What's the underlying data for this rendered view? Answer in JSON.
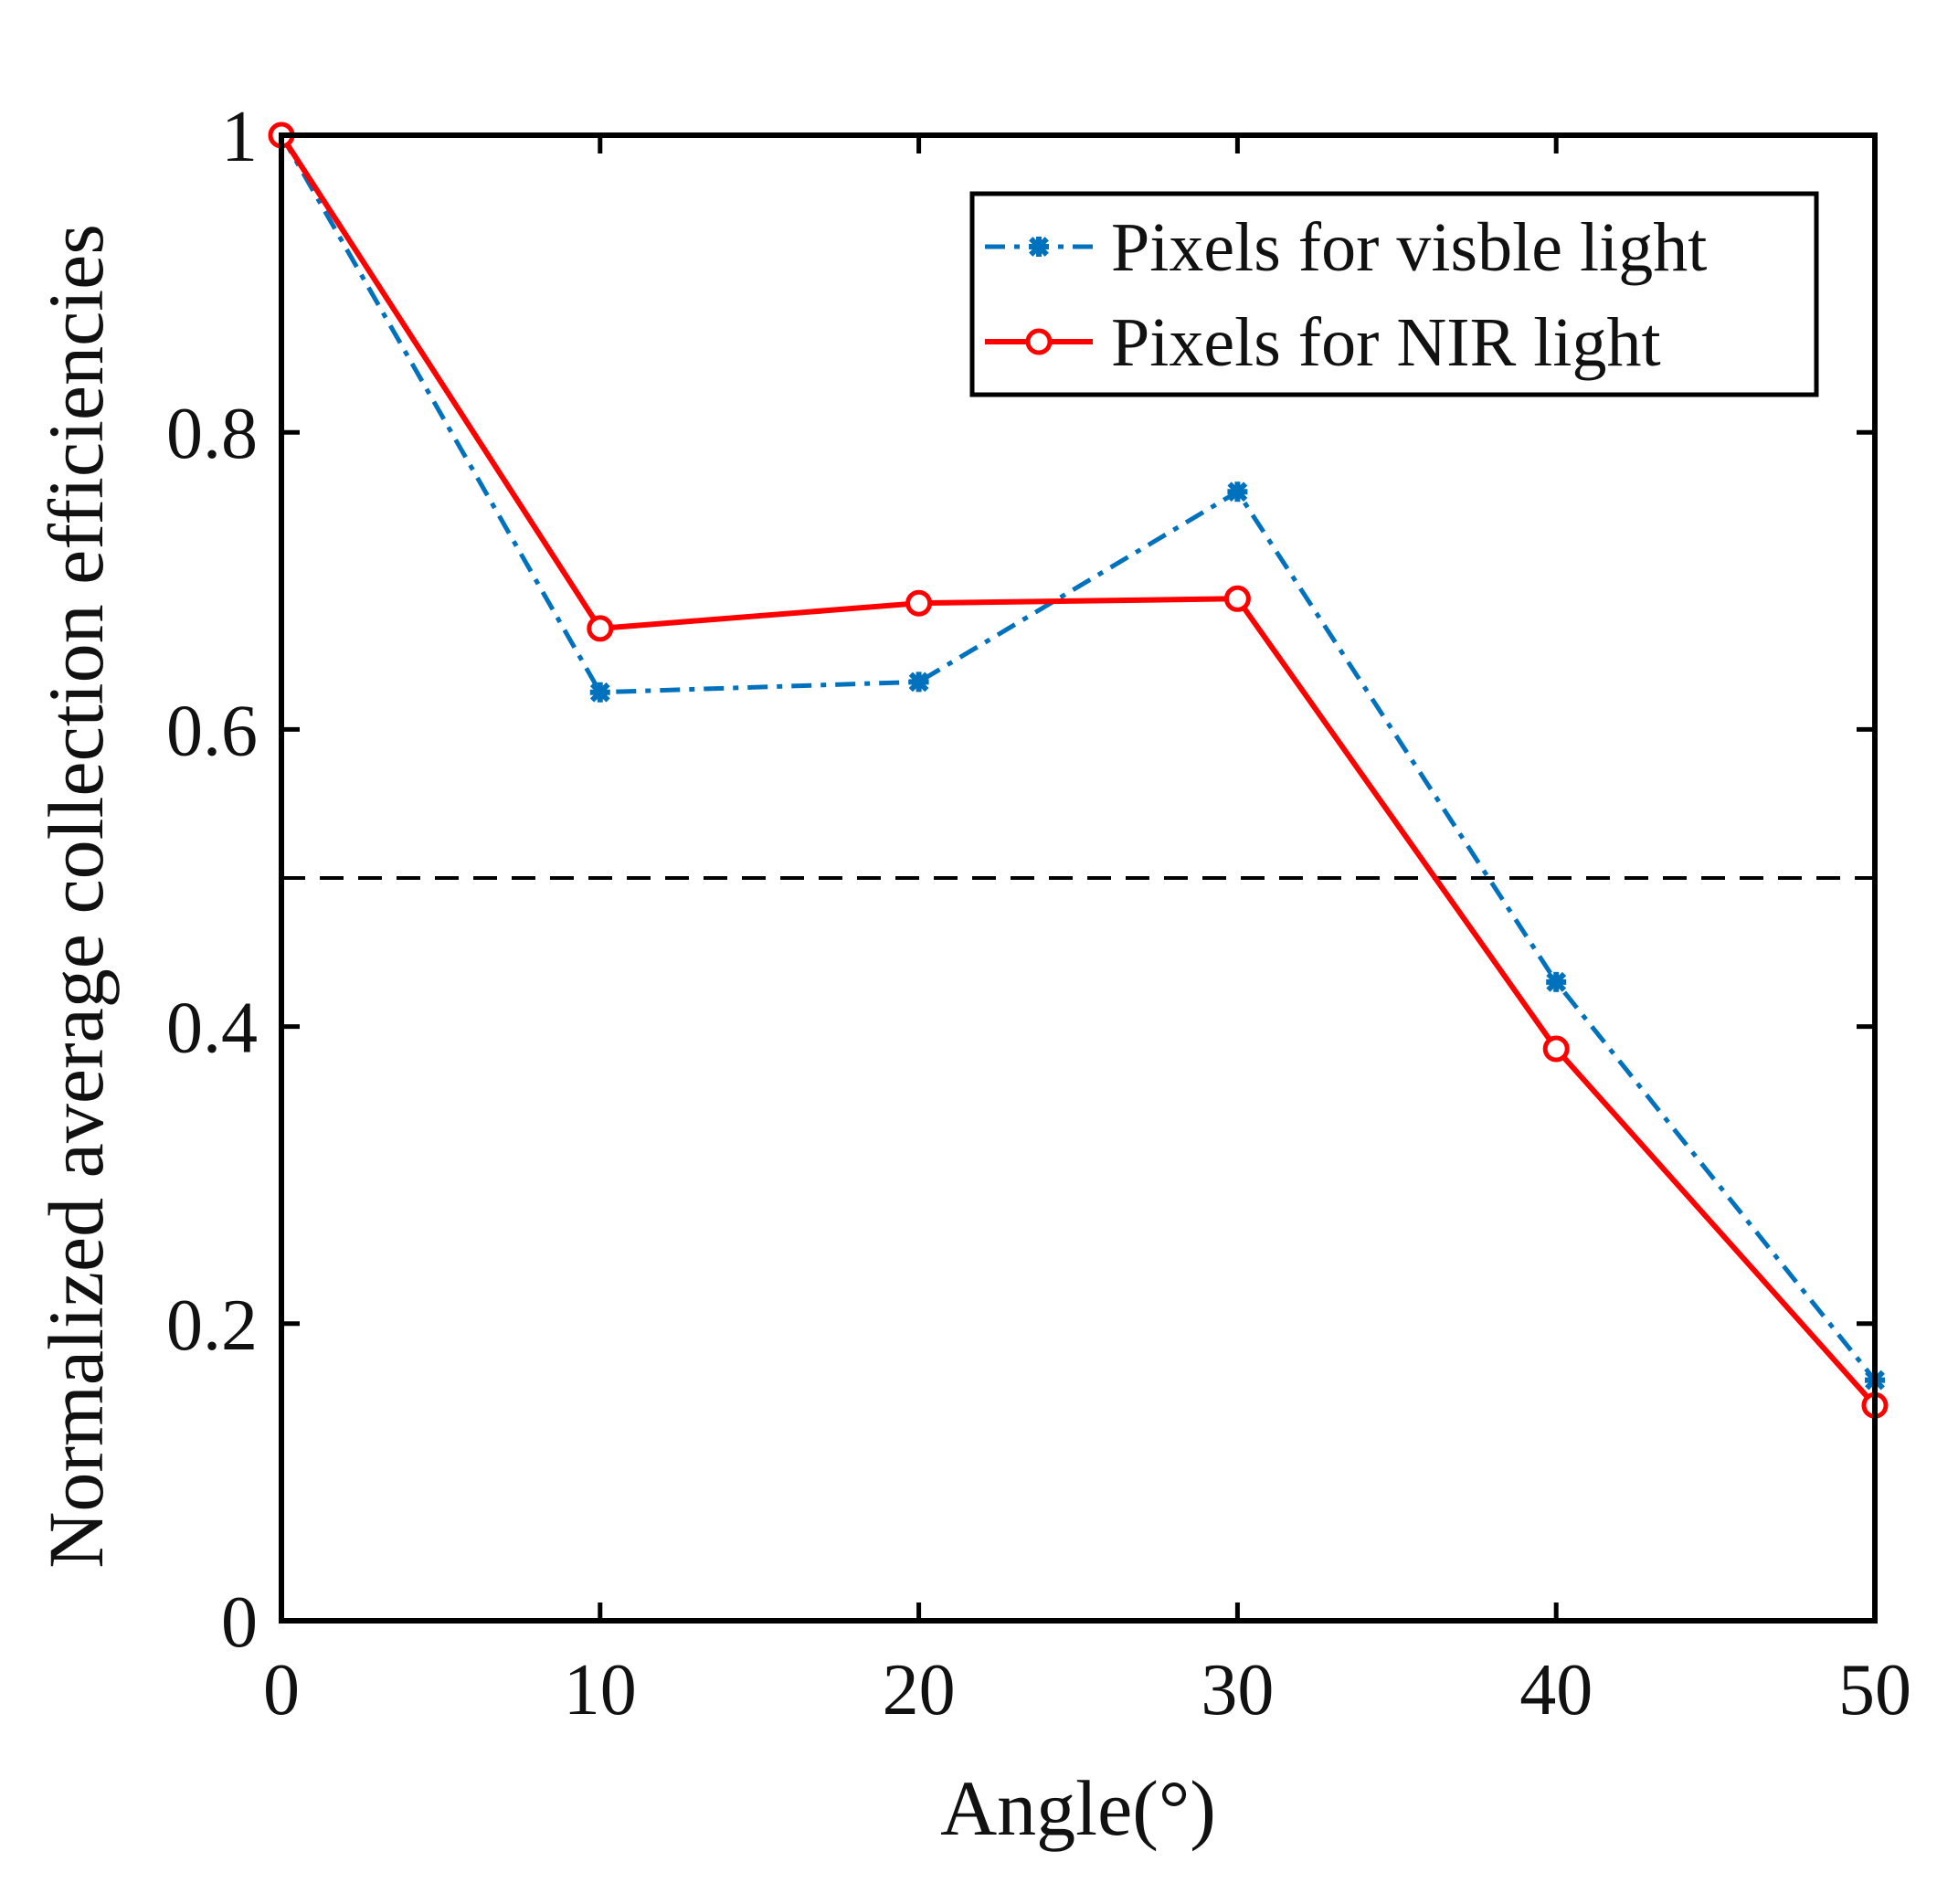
{
  "chart_data": {
    "type": "line",
    "xlabel": "Angle(°)",
    "ylabel": "Normalized average collection efficiencies",
    "xlim": [
      0,
      50
    ],
    "ylim": [
      0,
      1
    ],
    "xticks": [
      0,
      10,
      20,
      30,
      40,
      50
    ],
    "yticks": [
      0,
      0.2,
      0.4,
      0.6,
      0.8,
      1
    ],
    "ytick_labels": [
      "0",
      "0.2",
      "0.4",
      "0.6",
      "0.8",
      "1"
    ],
    "grid": false,
    "legend_position": "top-right",
    "x": [
      0,
      10,
      20,
      30,
      40,
      50
    ],
    "series": [
      {
        "name": "Pixels for visble light",
        "values": [
          1.0,
          0.625,
          0.632,
          0.76,
          0.43,
          0.162
        ],
        "color": "#0072BD",
        "line_style": "dash-dot",
        "marker": "asterisk"
      },
      {
        "name": "Pixels for NIR light",
        "values": [
          1.0,
          0.668,
          0.685,
          0.688,
          0.385,
          0.145
        ],
        "color": "#FF0000",
        "line_style": "solid",
        "marker": "circle"
      }
    ],
    "reference_line": {
      "y": 0.5,
      "color": "#000000",
      "line_style": "dashed"
    }
  }
}
